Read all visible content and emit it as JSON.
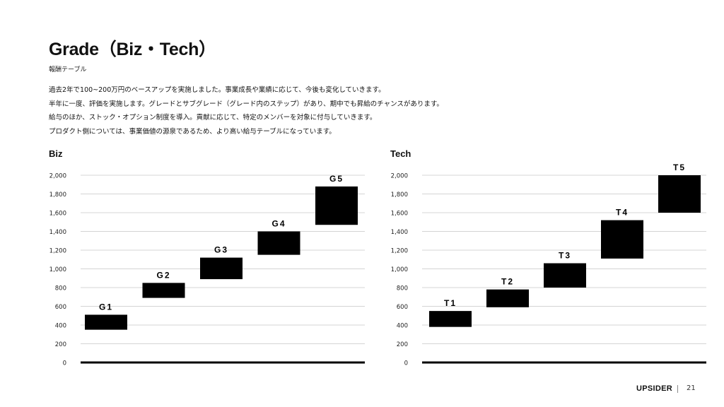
{
  "page": {
    "title": "Grade（Biz・Tech）",
    "subtitle": "報酬テーブル",
    "description": [
      "過去2年で100~200万円のベースアップを実施しました。事業成長や業績に応じて、今後も変化していきます。",
      "半年に一度、評価を実施します。グレードとサブグレード（グレード内のステップ）があり、期中でも昇給のチャンスがあります。",
      "給与のほか、ストック・オプション制度を導入。貢献に応じて、特定のメンバーを対象に付与していきます。",
      "プロダクト側については、事業価値の源泉であるため、より高い給与テーブルになっています。"
    ],
    "footer": {
      "logo": "UPSIDER",
      "page_number": "21"
    }
  },
  "chart_data": [
    {
      "type": "bar",
      "title": "Biz",
      "ylim": [
        0,
        2000
      ],
      "yticks": [
        "0",
        "200",
        "400",
        "600",
        "800",
        "1,000",
        "1,200",
        "1,400",
        "1,600",
        "1,800",
        "2,000"
      ],
      "grid": true,
      "categories": [
        "G1",
        "G2",
        "G3",
        "G4",
        "G5"
      ],
      "ranges": [
        [
          350,
          510
        ],
        [
          690,
          850
        ],
        [
          890,
          1120
        ],
        [
          1150,
          1400
        ],
        [
          1470,
          1880
        ]
      ]
    },
    {
      "type": "bar",
      "title": "Tech",
      "ylim": [
        0,
        2000
      ],
      "yticks": [
        "0",
        "200",
        "400",
        "600",
        "800",
        "1,000",
        "1,200",
        "1,400",
        "1,600",
        "1,800",
        "2,000"
      ],
      "grid": true,
      "categories": [
        "T1",
        "T2",
        "T3",
        "T4",
        "T5"
      ],
      "ranges": [
        [
          380,
          550
        ],
        [
          590,
          780
        ],
        [
          800,
          1060
        ],
        [
          1110,
          1520
        ],
        [
          1600,
          2000
        ]
      ]
    }
  ]
}
